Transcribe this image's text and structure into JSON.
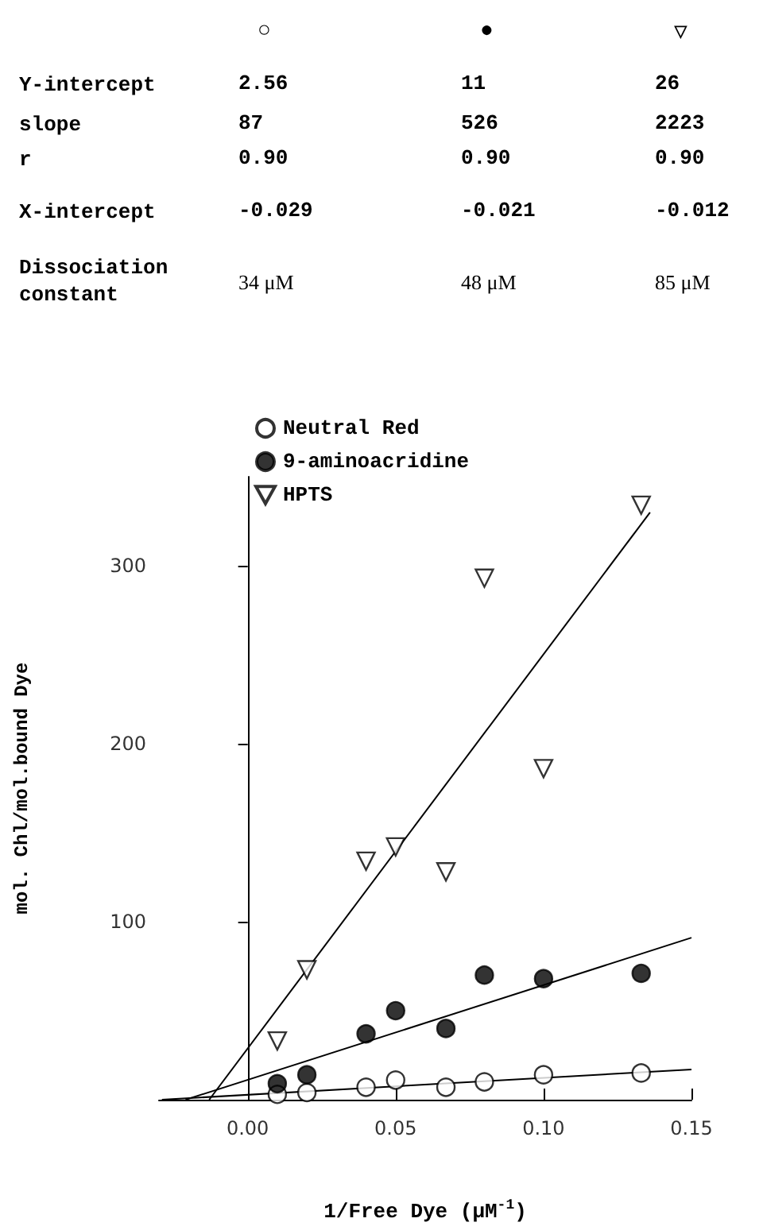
{
  "chart_data": [
    {
      "type": "other",
      "categories": [
        "○",
        "●",
        "▽"
      ],
      "y_categories": [
        "Y-intercept",
        "slope",
        "r",
        "X-intercept",
        "Dissociation constant"
      ],
      "cell_labels": [
        [
          "2.56",
          "11",
          "26"
        ],
        [
          "87",
          "526",
          "2223"
        ],
        [
          "0.90",
          "0.90",
          "0.90"
        ],
        [
          "-0.029",
          "-0.021",
          "-0.012"
        ],
        [
          "34 μM",
          "48 μM",
          "85 μM"
        ]
      ]
    },
    {
      "type": "scatter",
      "xlabel": "1/Free Dye (μM$^{-1}$)",
      "ylabel": "mol. Chl/mol.bound Dye",
      "xlim": [
        -0.03,
        0.15
      ],
      "ylim": [
        0,
        350
      ],
      "xticks": [
        {
          "value": 0,
          "label": "0.00"
        },
        {
          "value": 0.05,
          "label": "0.05"
        },
        {
          "value": 0.1,
          "label": "0.10"
        },
        {
          "value": 0.15,
          "label": "0.15"
        }
      ],
      "yticks": [
        100,
        200,
        300
      ],
      "legend": "top left",
      "series": [
        {
          "name": "Neutral Red",
          "color": "#ffffff",
          "marker": "circle",
          "x": [
            0.01,
            0.02,
            0.04,
            0.05,
            0.067,
            0.08,
            0.1,
            0.133
          ],
          "values": [
            3,
            4,
            7,
            11,
            7,
            10,
            14,
            15
          ]
        },
        {
          "name": "9-aminoacridine",
          "color": "#000000",
          "marker": "circle",
          "x": [
            0.01,
            0.02,
            0.04,
            0.05,
            0.067,
            0.08,
            0.1,
            0.133
          ],
          "values": [
            9,
            14,
            37,
            50,
            40,
            70,
            68,
            71
          ]
        },
        {
          "name": "HPTS",
          "color": "#ffffff",
          "marker": "triangle",
          "x": [
            0.01,
            0.02,
            0.04,
            0.05,
            0.067,
            0.08,
            0.1,
            0.133
          ],
          "values": [
            33,
            73,
            134,
            142,
            128,
            293,
            186,
            334
          ]
        },
        {
          "type": "line",
          "color": "#000000",
          "marker": "none",
          "x": [
            -0.029,
            0.15
          ],
          "values": [
            0,
            17
          ]
        },
        {
          "type": "line",
          "color": "#000000",
          "marker": "none",
          "x": [
            -0.021,
            0.15
          ],
          "values": [
            0,
            91
          ]
        },
        {
          "type": "line",
          "color": "#000000",
          "marker": "none",
          "x": [
            -0.013,
            0.136
          ],
          "values": [
            0,
            330
          ]
        }
      ]
    }
  ]
}
